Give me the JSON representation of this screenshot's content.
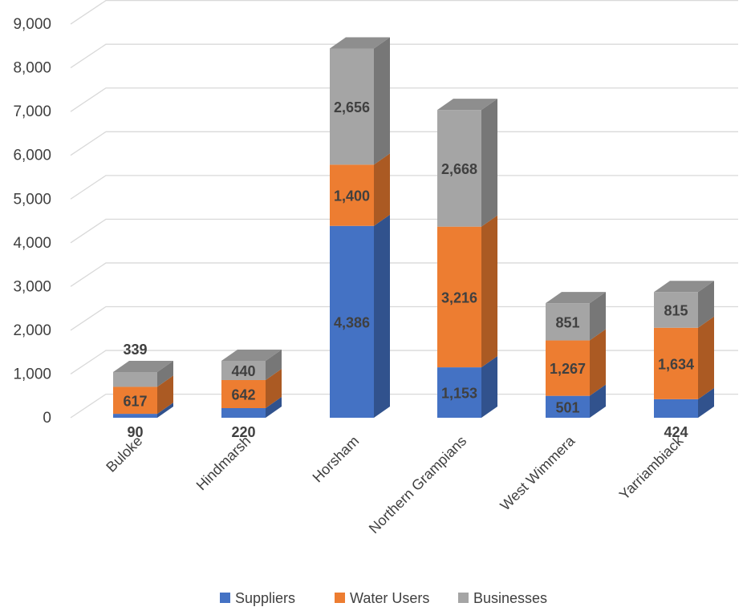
{
  "chart_data": {
    "type": "bar",
    "stacked": true,
    "three_d": true,
    "categories": [
      "Buloke",
      "Hindmarsh",
      "Horsham",
      "Northern Grampians",
      "West Wimmera",
      "Yarriambiack"
    ],
    "series": [
      {
        "name": "Suppliers",
        "values": [
          90,
          220,
          4386,
          1153,
          501,
          424
        ],
        "color": "#4472C4",
        "labels": [
          "90",
          "220",
          "4,386",
          "1,153",
          "501",
          "424"
        ]
      },
      {
        "name": "Water Users",
        "values": [
          617,
          642,
          1400,
          3216,
          1267,
          1634
        ],
        "color": "#ED7D31",
        "labels": [
          "617",
          "642",
          "1,400",
          "3,216",
          "1,267",
          "1,634"
        ]
      },
      {
        "name": "Businesses",
        "values": [
          339,
          440,
          2656,
          2668,
          851,
          815
        ],
        "color": "#A5A5A5",
        "labels": [
          "339",
          "440",
          "2,656",
          "2,668",
          "851",
          "815"
        ]
      }
    ],
    "yticks": [
      "0",
      "1,000",
      "2,000",
      "3,000",
      "4,000",
      "5,000",
      "6,000",
      "7,000",
      "8,000",
      "9,000"
    ],
    "ylim": [
      0,
      9000
    ],
    "grid": true,
    "legend_position": "bottom"
  }
}
